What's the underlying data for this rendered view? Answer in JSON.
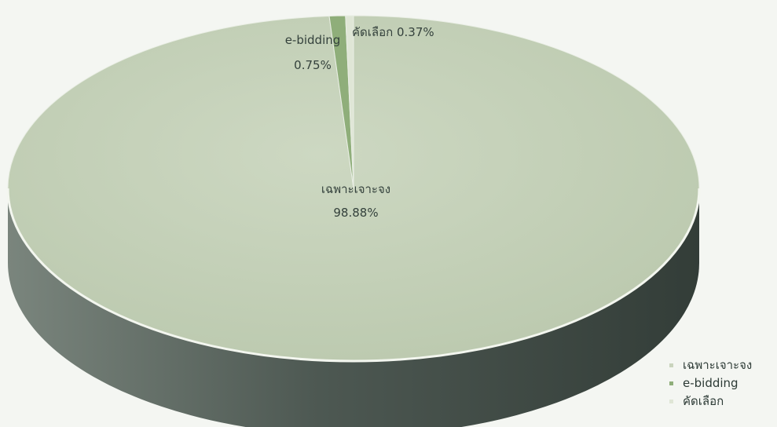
{
  "chart_data": {
    "type": "pie",
    "title": "",
    "style": "3d",
    "legend_position": "bottom-right",
    "slices": [
      {
        "name": "เฉพาะเจาะจง",
        "value": 98.88,
        "label_value": "98.88%",
        "color": "#c9d4bd",
        "side_color": "#5f6b63"
      },
      {
        "name": "e-bidding",
        "value": 0.75,
        "label_value": "0.75%",
        "color": "#8fae7a",
        "side_color": "#4e6142"
      },
      {
        "name": "คัดเลือก",
        "value": 0.37,
        "label_value": "0.37%",
        "color": "#dfe6d6",
        "side_color": "#7d8a7a"
      }
    ]
  }
}
